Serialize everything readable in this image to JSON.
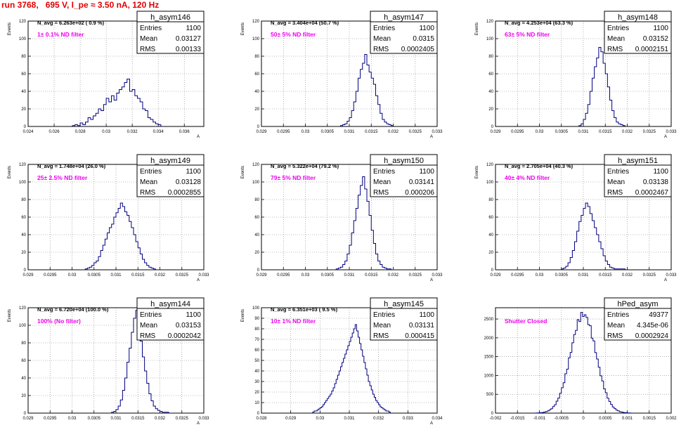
{
  "page_title": "run 3768,   695 V, I_pe ≈ 3.50 nA, 120 Hz",
  "colors": {
    "histogram": "#00007f",
    "annotation": "#ee00ee",
    "title": "#e00000",
    "grid": "#808080"
  },
  "chart_data": [
    {
      "type": "histogram",
      "name": "h_asym146",
      "stats": {
        "entries": "1100",
        "mean": "0.03127",
        "rms": "0.00133"
      },
      "navg": "N_avg = 6.263e+02 ( 0.9 %)",
      "annotation": "1± 0.1% ND filter",
      "ylabel": "Events",
      "xlabel": "A",
      "xlim": [
        0.024,
        0.0375
      ],
      "ylim": [
        0,
        120
      ],
      "xticks": [
        "0.024",
        "0.026",
        "0.028",
        "0.03",
        "0.032",
        "0.034",
        "0.036"
      ],
      "xtick_values": [
        0.024,
        0.026,
        0.028,
        0.03,
        0.032,
        0.034,
        0.036
      ],
      "yticks": [
        "0",
        "20",
        "40",
        "60",
        "80",
        "100",
        "120"
      ],
      "peak": 54,
      "bin_edges": [
        0.0274,
        0.0276,
        0.0278,
        0.028,
        0.0282,
        0.0284,
        0.0286,
        0.0288,
        0.029,
        0.0292,
        0.0294,
        0.0296,
        0.0298,
        0.03,
        0.0302,
        0.0304,
        0.0306,
        0.0308,
        0.031,
        0.0312,
        0.0314,
        0.0316,
        0.0318,
        0.032,
        0.0322,
        0.0324,
        0.0326,
        0.0328,
        0.033,
        0.0332,
        0.0334,
        0.0336,
        0.0338,
        0.034,
        0.0342
      ],
      "counts": [
        1,
        2,
        1,
        4,
        2,
        5,
        10,
        8,
        12,
        15,
        20,
        18,
        25,
        32,
        28,
        35,
        30,
        38,
        42,
        45,
        50,
        54,
        40,
        42,
        35,
        32,
        28,
        20,
        18,
        10,
        8,
        5,
        3,
        2
      ]
    },
    {
      "type": "histogram",
      "name": "h_asym147",
      "stats": {
        "entries": "1100",
        "mean": "0.0315",
        "rms": "0.0002405"
      },
      "navg": "N_avg = 3.404e+04 (50.7 %)",
      "annotation": "50± 5% ND filter",
      "ylabel": "Events",
      "xlabel": "A",
      "xlim": [
        0.029,
        0.033
      ],
      "ylim": [
        0,
        120
      ],
      "xticks": [
        "0.029",
        "0.0295",
        "0.03",
        "0.0305",
        "0.031",
        "0.0315",
        "0.032",
        "0.0325",
        "0.033"
      ],
      "xtick_values": [
        0.029,
        0.0295,
        0.03,
        0.0305,
        0.031,
        0.0315,
        0.032,
        0.0325,
        0.033
      ],
      "yticks": [
        "0",
        "20",
        "40",
        "60",
        "80",
        "100",
        "120"
      ],
      "peak": 82,
      "bin_edges": [
        0.0308,
        0.03085,
        0.0309,
        0.03095,
        0.031,
        0.03105,
        0.0311,
        0.03115,
        0.0312,
        0.03125,
        0.0313,
        0.03135,
        0.0314,
        0.03145,
        0.0315,
        0.03155,
        0.0316,
        0.03165,
        0.0317,
        0.03175,
        0.0318,
        0.03185,
        0.0319,
        0.03195,
        0.032
      ],
      "counts": [
        1,
        2,
        3,
        6,
        10,
        18,
        28,
        40,
        55,
        65,
        72,
        82,
        70,
        62,
        55,
        48,
        35,
        25,
        15,
        8,
        5,
        3,
        2,
        1
      ]
    },
    {
      "type": "histogram",
      "name": "h_asym148",
      "stats": {
        "entries": "1100",
        "mean": "0.03152",
        "rms": "0.0002151"
      },
      "navg": "N_avg = 4.253e+04 (63.3 %)",
      "annotation": "63± 5% ND filter",
      "ylabel": "Events",
      "xlabel": "A",
      "xlim": [
        0.029,
        0.033
      ],
      "ylim": [
        0,
        120
      ],
      "xticks": [
        "0.029",
        "0.0295",
        "0.03",
        "0.0305",
        "0.031",
        "0.0315",
        "0.032",
        "0.0325",
        "0.033"
      ],
      "xtick_values": [
        0.029,
        0.0295,
        0.03,
        0.0305,
        0.031,
        0.0315,
        0.032,
        0.0325,
        0.033
      ],
      "yticks": [
        "0",
        "20",
        "40",
        "60",
        "80",
        "100",
        "120"
      ],
      "peak": 90,
      "bin_edges": [
        0.0309,
        0.03095,
        0.031,
        0.03105,
        0.0311,
        0.03115,
        0.0312,
        0.03125,
        0.0313,
        0.03135,
        0.0314,
        0.03145,
        0.0315,
        0.03155,
        0.0316,
        0.03165,
        0.0317,
        0.03175,
        0.0318,
        0.03185,
        0.0319,
        0.03195
      ],
      "counts": [
        1,
        3,
        8,
        15,
        25,
        40,
        55,
        68,
        78,
        90,
        85,
        72,
        60,
        45,
        30,
        18,
        10,
        5,
        3,
        2,
        1
      ]
    },
    {
      "type": "histogram",
      "name": "h_asym149",
      "stats": {
        "entries": "1100",
        "mean": "0.03128",
        "rms": "0.0002855"
      },
      "navg": "N_avg = 1.748e+04 (26.0 %)",
      "annotation": "25± 2.5% ND filter",
      "ylabel": "Events",
      "xlabel": "A",
      "xlim": [
        0.029,
        0.033
      ],
      "ylim": [
        0,
        120
      ],
      "xticks": [
        "0.029",
        "0.0295",
        "0.03",
        "0.0305",
        "0.031",
        "0.0315",
        "0.032",
        "0.0325",
        "0.033"
      ],
      "xtick_values": [
        0.029,
        0.0295,
        0.03,
        0.0305,
        0.031,
        0.0315,
        0.032,
        0.0325,
        0.033
      ],
      "yticks": [
        "0",
        "20",
        "40",
        "60",
        "80",
        "100",
        "120"
      ],
      "peak": 76,
      "bin_edges": [
        0.0303,
        0.03035,
        0.0304,
        0.03045,
        0.0305,
        0.03055,
        0.0306,
        0.03065,
        0.0307,
        0.03075,
        0.0308,
        0.03085,
        0.0309,
        0.03095,
        0.031,
        0.03105,
        0.0311,
        0.03115,
        0.0312,
        0.03125,
        0.0313,
        0.03135,
        0.0314,
        0.03145,
        0.0315,
        0.03155,
        0.0316,
        0.03165,
        0.0317,
        0.03175,
        0.0318,
        0.03185,
        0.0319
      ],
      "counts": [
        1,
        2,
        3,
        5,
        8,
        10,
        15,
        22,
        28,
        35,
        42,
        48,
        52,
        60,
        65,
        70,
        76,
        72,
        66,
        62,
        55,
        48,
        40,
        32,
        25,
        18,
        12,
        8,
        5,
        3,
        2,
        1
      ]
    },
    {
      "type": "histogram",
      "name": "h_asym150",
      "stats": {
        "entries": "1100",
        "mean": "0.03141",
        "rms": "0.000206"
      },
      "navg": "N_avg = 5.322e+04 (79.2 %)",
      "annotation": "79± 5% ND filter",
      "ylabel": "Events",
      "xlabel": "A",
      "xlim": [
        0.029,
        0.033
      ],
      "ylim": [
        0,
        120
      ],
      "xticks": [
        "0.029",
        "0.0295",
        "0.03",
        "0.0305",
        "0.031",
        "0.0315",
        "0.032",
        "0.0325",
        "0.033"
      ],
      "xtick_values": [
        0.029,
        0.0295,
        0.03,
        0.0305,
        0.031,
        0.0315,
        0.032,
        0.0325,
        0.033
      ],
      "yticks": [
        "0",
        "20",
        "40",
        "60",
        "80",
        "100",
        "120"
      ],
      "peak": 106,
      "bin_edges": [
        0.0307,
        0.03075,
        0.0308,
        0.03085,
        0.0309,
        0.03095,
        0.031,
        0.03105,
        0.0311,
        0.03115,
        0.0312,
        0.03125,
        0.0313,
        0.03135,
        0.0314,
        0.03145,
        0.0315,
        0.03155,
        0.0316,
        0.03165,
        0.0317,
        0.03175,
        0.0318,
        0.03185,
        0.0319,
        0.03195
      ],
      "counts": [
        1,
        2,
        3,
        6,
        10,
        18,
        28,
        42,
        56,
        70,
        85,
        96,
        106,
        92,
        78,
        62,
        45,
        30,
        18,
        10,
        6,
        3,
        2,
        1,
        1
      ]
    },
    {
      "type": "histogram",
      "name": "h_asym151",
      "stats": {
        "entries": "1100",
        "mean": "0.03138",
        "rms": "0.0002467"
      },
      "navg": "N_avg = 2.705e+04 (40.3 %)",
      "annotation": "40± 4% ND filter",
      "ylabel": "Events",
      "xlabel": "A",
      "xlim": [
        0.029,
        0.033
      ],
      "ylim": [
        0,
        120
      ],
      "xticks": [
        "0.029",
        "0.0295",
        "0.03",
        "0.0305",
        "0.031",
        "0.0315",
        "0.032",
        "0.0325",
        "0.033"
      ],
      "xtick_values": [
        0.029,
        0.0295,
        0.03,
        0.0305,
        0.031,
        0.0315,
        0.032,
        0.0325,
        0.033
      ],
      "yticks": [
        "0",
        "20",
        "40",
        "60",
        "80",
        "100",
        "120"
      ],
      "peak": 76,
      "bin_edges": [
        0.0305,
        0.03055,
        0.0306,
        0.03065,
        0.0307,
        0.03075,
        0.0308,
        0.03085,
        0.0309,
        0.03095,
        0.031,
        0.03105,
        0.0311,
        0.03115,
        0.0312,
        0.03125,
        0.0313,
        0.03135,
        0.0314,
        0.03145,
        0.0315,
        0.03155,
        0.0316,
        0.03165,
        0.0317,
        0.03175,
        0.0318,
        0.03185,
        0.0319,
        0.03195
      ],
      "counts": [
        1,
        2,
        4,
        8,
        14,
        22,
        32,
        44,
        55,
        62,
        70,
        76,
        72,
        64,
        56,
        48,
        40,
        32,
        24,
        16,
        10,
        6,
        3,
        2,
        1,
        1,
        1,
        1,
        1
      ]
    },
    {
      "type": "histogram",
      "name": "h_asym144",
      "stats": {
        "entries": "1100",
        "mean": "0.03153",
        "rms": "0.0002042"
      },
      "navg": "N_avg = 6.720e+04 (100.0 %)",
      "annotation": "100% (No filter)",
      "ylabel": "Events",
      "xlabel": "A",
      "xlim": [
        0.029,
        0.033
      ],
      "ylim": [
        0,
        120
      ],
      "xticks": [
        "0.029",
        "0.0295",
        "0.03",
        "0.0305",
        "0.031",
        "0.0315",
        "0.032",
        "0.0325",
        "0.033"
      ],
      "xtick_values": [
        0.029,
        0.0295,
        0.03,
        0.0305,
        0.031,
        0.0315,
        0.032,
        0.0325,
        0.033
      ],
      "yticks": [
        "0",
        "20",
        "40",
        "60",
        "80",
        "100",
        "120"
      ],
      "peak": 117,
      "bin_edges": [
        0.0309,
        0.03095,
        0.031,
        0.03105,
        0.0311,
        0.03115,
        0.0312,
        0.03125,
        0.0313,
        0.03135,
        0.0314,
        0.03145,
        0.0315,
        0.03155,
        0.0316,
        0.03165,
        0.0317,
        0.03175,
        0.0318,
        0.03185,
        0.0319,
        0.03195,
        0.032,
        0.03205,
        0.0321,
        0.03215,
        0.0322
      ],
      "counts": [
        1,
        2,
        4,
        8,
        15,
        26,
        40,
        58,
        74,
        92,
        108,
        117,
        100,
        82,
        64,
        48,
        34,
        22,
        14,
        8,
        5,
        3,
        2,
        1,
        1,
        1
      ]
    },
    {
      "type": "histogram",
      "name": "h_asym145",
      "stats": {
        "entries": "1100",
        "mean": "0.03131",
        "rms": "0.000415"
      },
      "navg": "N_avg = 6.351e+03 ( 9.5 %)",
      "annotation": "10± 1% ND filter",
      "ylabel": "Events",
      "xlabel": "A",
      "xlim": [
        0.028,
        0.034
      ],
      "ylim": [
        0,
        100
      ],
      "xticks": [
        "0.028",
        "0.029",
        "0.03",
        "0.031",
        "0.032",
        "0.033",
        "0.034"
      ],
      "xtick_values": [
        0.028,
        0.029,
        0.03,
        0.031,
        0.032,
        0.033,
        0.034
      ],
      "yticks": [
        "0",
        "10",
        "20",
        "30",
        "40",
        "50",
        "60",
        "70",
        "80",
        "90",
        "100"
      ],
      "peak": 84,
      "bin_edges": [
        0.02975,
        0.0298,
        0.02985,
        0.0299,
        0.02995,
        0.03,
        0.03005,
        0.0301,
        0.03015,
        0.0302,
        0.03025,
        0.0303,
        0.03035,
        0.0304,
        0.03045,
        0.0305,
        0.03055,
        0.0306,
        0.03065,
        0.0307,
        0.03075,
        0.0308,
        0.03085,
        0.0309,
        0.03095,
        0.031,
        0.03105,
        0.0311,
        0.03115,
        0.0312,
        0.03125,
        0.0313,
        0.03135,
        0.0314,
        0.03145,
        0.0315,
        0.03155,
        0.0316,
        0.03165,
        0.0317,
        0.03175,
        0.0318,
        0.03185,
        0.0319,
        0.03195,
        0.032,
        0.03205,
        0.0321,
        0.03215,
        0.0322,
        0.03225,
        0.0323,
        0.03235,
        0.0324
      ],
      "counts": [
        1,
        2,
        2,
        3,
        4,
        5,
        6,
        8,
        10,
        12,
        14,
        16,
        18,
        21,
        24,
        28,
        32,
        36,
        40,
        44,
        48,
        52,
        56,
        60,
        64,
        68,
        72,
        76,
        80,
        84,
        78,
        72,
        66,
        60,
        54,
        48,
        42,
        36,
        30,
        26,
        22,
        18,
        15,
        12,
        10,
        8,
        6,
        5,
        4,
        3,
        2,
        2,
        1
      ]
    },
    {
      "type": "histogram",
      "name": "hPed_asym",
      "stats": {
        "entries": "49377",
        "mean": "4.345e-06",
        "rms": "0.0002924"
      },
      "navg": "",
      "annotation": "Shutter Closed",
      "ylabel": "",
      "xlabel": "",
      "xlim": [
        -0.002,
        0.002
      ],
      "ylim": [
        0,
        2800
      ],
      "xticks": [
        "-0.002",
        "-0.0015",
        "-0.001",
        "-0.0005",
        "0",
        "0.0005",
        "0.001",
        "0.0015",
        "0.002"
      ],
      "xtick_values": [
        -0.002,
        -0.0015,
        -0.001,
        -0.0005,
        0,
        0.0005,
        0.001,
        0.0015,
        0.002
      ],
      "yticks": [
        "0",
        "500",
        "1000",
        "1500",
        "2000",
        "2500"
      ],
      "ytick_values": [
        0,
        500,
        1000,
        1500,
        2000,
        2500
      ],
      "peak": 2620,
      "gaussian": {
        "mean": 0.0,
        "sigma": 0.00029,
        "height": 2620,
        "xmin": -0.0011,
        "xmax": 0.0011,
        "bin": 4e-05
      }
    }
  ]
}
